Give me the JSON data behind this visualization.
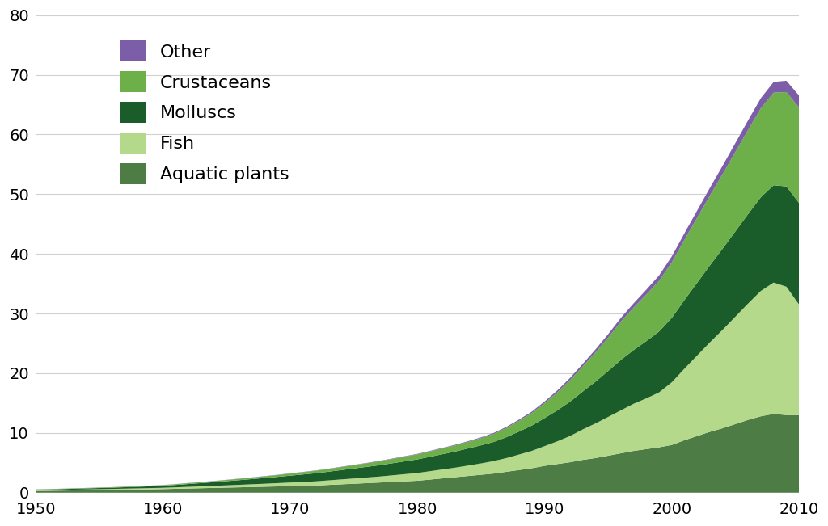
{
  "years": [
    1950,
    1951,
    1952,
    1953,
    1954,
    1955,
    1956,
    1957,
    1958,
    1959,
    1960,
    1961,
    1962,
    1963,
    1964,
    1965,
    1966,
    1967,
    1968,
    1969,
    1970,
    1971,
    1972,
    1973,
    1974,
    1975,
    1976,
    1977,
    1978,
    1979,
    1980,
    1981,
    1982,
    1983,
    1984,
    1985,
    1986,
    1987,
    1988,
    1989,
    1990,
    1991,
    1992,
    1993,
    1994,
    1995,
    1996,
    1997,
    1998,
    1999,
    2000,
    2001,
    2002,
    2003,
    2004,
    2005,
    2006,
    2007,
    2008,
    2009,
    2010
  ],
  "aquatic_plants": [
    0.3,
    0.32,
    0.35,
    0.38,
    0.41,
    0.44,
    0.47,
    0.5,
    0.53,
    0.56,
    0.6,
    0.65,
    0.7,
    0.75,
    0.8,
    0.85,
    0.9,
    0.95,
    1.0,
    1.05,
    1.1,
    1.15,
    1.2,
    1.3,
    1.4,
    1.5,
    1.6,
    1.7,
    1.8,
    1.9,
    2.0,
    2.2,
    2.4,
    2.6,
    2.8,
    3.0,
    3.2,
    3.5,
    3.8,
    4.1,
    4.5,
    4.8,
    5.1,
    5.5,
    5.8,
    6.2,
    6.6,
    7.0,
    7.3,
    7.6,
    8.0,
    8.8,
    9.5,
    10.2,
    10.8,
    11.5,
    12.2,
    12.8,
    13.2,
    13.0,
    13.0
  ],
  "fish": [
    0.1,
    0.11,
    0.12,
    0.13,
    0.14,
    0.15,
    0.16,
    0.18,
    0.19,
    0.21,
    0.22,
    0.25,
    0.28,
    0.31,
    0.34,
    0.38,
    0.42,
    0.46,
    0.5,
    0.55,
    0.6,
    0.65,
    0.7,
    0.76,
    0.82,
    0.88,
    0.94,
    1.0,
    1.1,
    1.2,
    1.3,
    1.4,
    1.5,
    1.6,
    1.75,
    1.9,
    2.1,
    2.3,
    2.6,
    2.9,
    3.3,
    3.8,
    4.4,
    5.1,
    5.8,
    6.5,
    7.2,
    7.9,
    8.5,
    9.2,
    10.5,
    12.0,
    13.5,
    15.0,
    16.5,
    18.0,
    19.5,
    21.0,
    22.0,
    21.5,
    18.5
  ],
  "molluscs": [
    0.1,
    0.11,
    0.13,
    0.15,
    0.17,
    0.19,
    0.21,
    0.24,
    0.27,
    0.3,
    0.33,
    0.4,
    0.47,
    0.55,
    0.62,
    0.7,
    0.78,
    0.87,
    0.96,
    1.05,
    1.15,
    1.25,
    1.35,
    1.45,
    1.56,
    1.67,
    1.78,
    1.9,
    2.02,
    2.15,
    2.28,
    2.42,
    2.56,
    2.71,
    2.87,
    3.03,
    3.2,
    3.5,
    3.85,
    4.25,
    4.7,
    5.2,
    5.75,
    6.35,
    7.0,
    7.7,
    8.45,
    9.0,
    9.6,
    10.2,
    10.8,
    11.5,
    12.2,
    12.9,
    13.6,
    14.3,
    15.0,
    15.7,
    16.3,
    16.8,
    17.0
  ],
  "crustaceans": [
    0.04,
    0.05,
    0.05,
    0.06,
    0.06,
    0.07,
    0.07,
    0.08,
    0.09,
    0.1,
    0.11,
    0.12,
    0.14,
    0.16,
    0.18,
    0.2,
    0.22,
    0.25,
    0.28,
    0.31,
    0.34,
    0.38,
    0.42,
    0.46,
    0.5,
    0.55,
    0.6,
    0.66,
    0.72,
    0.78,
    0.84,
    0.9,
    0.96,
    1.02,
    1.1,
    1.2,
    1.35,
    1.55,
    1.8,
    2.1,
    2.5,
    3.0,
    3.6,
    4.2,
    4.9,
    5.6,
    6.4,
    7.1,
    7.8,
    8.5,
    9.3,
    10.1,
    10.9,
    11.7,
    12.5,
    13.3,
    14.1,
    14.9,
    15.5,
    15.8,
    16.0
  ],
  "other": [
    0.02,
    0.02,
    0.02,
    0.02,
    0.02,
    0.02,
    0.02,
    0.02,
    0.02,
    0.02,
    0.03,
    0.03,
    0.03,
    0.03,
    0.03,
    0.03,
    0.04,
    0.04,
    0.04,
    0.04,
    0.05,
    0.05,
    0.05,
    0.05,
    0.06,
    0.06,
    0.06,
    0.07,
    0.07,
    0.08,
    0.08,
    0.09,
    0.1,
    0.11,
    0.12,
    0.14,
    0.16,
    0.18,
    0.21,
    0.24,
    0.28,
    0.33,
    0.38,
    0.44,
    0.5,
    0.57,
    0.65,
    0.73,
    0.82,
    0.91,
    1.0,
    1.1,
    1.2,
    1.3,
    1.4,
    1.5,
    1.6,
    1.7,
    1.8,
    1.9,
    2.0
  ],
  "colors": {
    "aquatic_plants": "#4d7c45",
    "fish": "#b5d98a",
    "molluscs": "#1a5c2a",
    "crustaceans": "#6db04a",
    "other": "#7b5ea7"
  },
  "legend_labels": [
    "Other",
    "Crustaceans",
    "Molluscs",
    "Fish",
    "Aquatic plants"
  ],
  "legend_colors": [
    "#7b5ea7",
    "#6db04a",
    "#1a5c2a",
    "#b5d98a",
    "#4d7c45"
  ],
  "xlim": [
    1950,
    2010
  ],
  "ylim": [
    0,
    80
  ],
  "yticks": [
    0,
    10,
    20,
    30,
    40,
    50,
    60,
    70,
    80
  ],
  "xticks": [
    1950,
    1960,
    1970,
    1980,
    1990,
    2000,
    2010
  ],
  "background_color": "#f5f5f5",
  "grid_color": "#cccccc",
  "tick_label_fontsize": 14,
  "legend_fontsize": 16
}
